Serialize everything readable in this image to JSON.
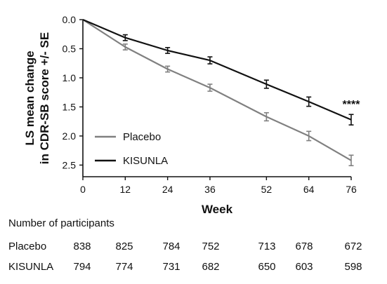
{
  "chart_data": {
    "type": "line",
    "title": "",
    "xlabel": "Week",
    "ylabel_lines": [
      "LS mean change",
      "in CDR-SB score +/- SE"
    ],
    "x": [
      0,
      12,
      24,
      36,
      52,
      64,
      76
    ],
    "x_ticks": [
      0,
      12,
      24,
      36,
      52,
      64,
      76
    ],
    "xlim": [
      0,
      76
    ],
    "y_ticks": [
      0.0,
      0.5,
      1.0,
      1.5,
      2.0,
      2.5
    ],
    "y_tick_labels": [
      "0.0",
      "0.5",
      "1.0",
      "1.5",
      "2.0",
      "2.5"
    ],
    "ylim": [
      0.0,
      2.7
    ],
    "y_inverted": true,
    "grid": false,
    "legend_position": "bottom-left",
    "series": [
      {
        "name": "Placebo",
        "color": "#808080",
        "values": [
          0.0,
          0.47,
          0.85,
          1.17,
          1.67,
          2.0,
          2.42
        ],
        "se": [
          0.0,
          0.05,
          0.05,
          0.06,
          0.07,
          0.08,
          0.09
        ]
      },
      {
        "name": "KISUNLA",
        "color": "#111111",
        "values": [
          0.0,
          0.31,
          0.53,
          0.7,
          1.11,
          1.41,
          1.72
        ],
        "se": [
          0.0,
          0.05,
          0.05,
          0.06,
          0.07,
          0.08,
          0.09
        ]
      }
    ],
    "annotations": [
      {
        "text": "****",
        "x": 76,
        "y": 1.52
      }
    ],
    "participants_table": {
      "title": "Number of participants",
      "rows": [
        {
          "label": "Placebo",
          "values": [
            "838",
            "825",
            "784",
            "752",
            "713",
            "678",
            "672"
          ]
        },
        {
          "label": "KISUNLA",
          "values": [
            "794",
            "774",
            "731",
            "682",
            "650",
            "603",
            "598"
          ]
        }
      ]
    }
  }
}
